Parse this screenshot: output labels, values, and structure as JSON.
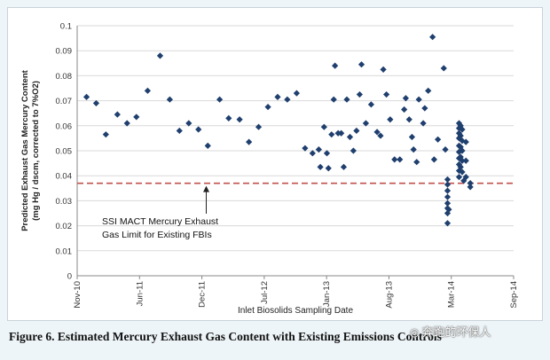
{
  "chart_data": {
    "type": "scatter",
    "ylabel": "Predicted Exhaust Gas Mercury Content (mg Hg / dscm, corrected to 7%O2)",
    "ylabel_lines": [
      "Predicted Exhaust Gas Mercury Content",
      "(mg Hg / dscm, corrected to 7%O2)"
    ],
    "xlabel": "Inlet Biosolids Sampling Date",
    "x_ticks": [
      "Nov-10",
      "Jun-11",
      "Dec-11",
      "Jul-12",
      "Jan-13",
      "Aug-13",
      "Mar-14",
      "Sep-14"
    ],
    "y_ticks": [
      "0",
      "0.01",
      "0.02",
      "0.03",
      "0.04",
      "0.05",
      "0.06",
      "0.07",
      "0.08",
      "0.09",
      "0.1"
    ],
    "ylim": [
      0,
      0.1
    ],
    "xlim": [
      "2010-11-01",
      "2014-09-01"
    ],
    "grid": "horizontal",
    "marker_color": "#1f3f6e",
    "limit_line": {
      "value": 0.037,
      "color": "#c0504d",
      "style": "dashed"
    },
    "annotation": {
      "lines": [
        "SSI MACT Mercury Exhaust",
        "Gas Limit for Existing FBIs"
      ],
      "points_to": {
        "x": "2011-12-20",
        "y": 0.037
      }
    },
    "points": [
      {
        "x": "2010-12-01",
        "y": 0.0715
      },
      {
        "x": "2011-01-01",
        "y": 0.069
      },
      {
        "x": "2011-02-01",
        "y": 0.0565
      },
      {
        "x": "2011-03-10",
        "y": 0.0645
      },
      {
        "x": "2011-04-10",
        "y": 0.061
      },
      {
        "x": "2011-05-10",
        "y": 0.0635
      },
      {
        "x": "2011-06-15",
        "y": 0.074
      },
      {
        "x": "2011-07-25",
        "y": 0.088
      },
      {
        "x": "2011-08-25",
        "y": 0.0705
      },
      {
        "x": "2011-09-25",
        "y": 0.058
      },
      {
        "x": "2011-10-25",
        "y": 0.061
      },
      {
        "x": "2011-11-25",
        "y": 0.0585
      },
      {
        "x": "2011-12-25",
        "y": 0.052
      },
      {
        "x": "2012-02-01",
        "y": 0.0705
      },
      {
        "x": "2012-03-01",
        "y": 0.063
      },
      {
        "x": "2012-04-05",
        "y": 0.0625
      },
      {
        "x": "2012-05-05",
        "y": 0.0535
      },
      {
        "x": "2012-06-05",
        "y": 0.0595
      },
      {
        "x": "2012-07-05",
        "y": 0.0675
      },
      {
        "x": "2012-08-05",
        "y": 0.0715
      },
      {
        "x": "2012-09-05",
        "y": 0.0705
      },
      {
        "x": "2012-10-05",
        "y": 0.073
      },
      {
        "x": "2012-11-01",
        "y": 0.051
      },
      {
        "x": "2012-11-25",
        "y": 0.049
      },
      {
        "x": "2012-12-15",
        "y": 0.0505
      },
      {
        "x": "2012-12-20",
        "y": 0.0435
      },
      {
        "x": "2013-01-01",
        "y": 0.0595
      },
      {
        "x": "2013-01-10",
        "y": 0.049
      },
      {
        "x": "2013-01-15",
        "y": 0.043
      },
      {
        "x": "2013-01-25",
        "y": 0.0565
      },
      {
        "x": "2013-02-01",
        "y": 0.0705
      },
      {
        "x": "2013-02-05",
        "y": 0.084
      },
      {
        "x": "2013-02-15",
        "y": 0.057
      },
      {
        "x": "2013-02-25",
        "y": 0.057
      },
      {
        "x": "2013-03-05",
        "y": 0.0435
      },
      {
        "x": "2013-03-15",
        "y": 0.0705
      },
      {
        "x": "2013-03-25",
        "y": 0.0555
      },
      {
        "x": "2013-04-05",
        "y": 0.05
      },
      {
        "x": "2013-04-15",
        "y": 0.058
      },
      {
        "x": "2013-04-25",
        "y": 0.0725
      },
      {
        "x": "2013-05-01",
        "y": 0.0845
      },
      {
        "x": "2013-05-15",
        "y": 0.061
      },
      {
        "x": "2013-06-01",
        "y": 0.0685
      },
      {
        "x": "2013-06-20",
        "y": 0.0575
      },
      {
        "x": "2013-07-01",
        "y": 0.056
      },
      {
        "x": "2013-07-10",
        "y": 0.0825
      },
      {
        "x": "2013-07-20",
        "y": 0.0725
      },
      {
        "x": "2013-08-01",
        "y": 0.0625
      },
      {
        "x": "2013-08-15",
        "y": 0.0465
      },
      {
        "x": "2013-09-01",
        "y": 0.0465
      },
      {
        "x": "2013-09-15",
        "y": 0.0665
      },
      {
        "x": "2013-09-20",
        "y": 0.071
      },
      {
        "x": "2013-10-01",
        "y": 0.0625
      },
      {
        "x": "2013-10-10",
        "y": 0.0555
      },
      {
        "x": "2013-10-15",
        "y": 0.0505
      },
      {
        "x": "2013-10-25",
        "y": 0.0455
      },
      {
        "x": "2013-11-01",
        "y": 0.0705
      },
      {
        "x": "2013-11-15",
        "y": 0.061
      },
      {
        "x": "2013-11-20",
        "y": 0.067
      },
      {
        "x": "2013-12-01",
        "y": 0.074
      },
      {
        "x": "2013-12-15",
        "y": 0.0955
      },
      {
        "x": "2013-12-20",
        "y": 0.0465
      },
      {
        "x": "2014-01-01",
        "y": 0.0545
      },
      {
        "x": "2014-01-20",
        "y": 0.083
      },
      {
        "x": "2014-01-25",
        "y": 0.0505
      },
      {
        "x": "2014-02-01",
        "y": 0.0385
      },
      {
        "x": "2014-02-01",
        "y": 0.0365
      },
      {
        "x": "2014-02-01",
        "y": 0.034
      },
      {
        "x": "2014-02-01",
        "y": 0.0315
      },
      {
        "x": "2014-02-01",
        "y": 0.029
      },
      {
        "x": "2014-02-01",
        "y": 0.027
      },
      {
        "x": "2014-02-01",
        "y": 0.025
      },
      {
        "x": "2014-02-01",
        "y": 0.021
      },
      {
        "x": "2014-02-05",
        "y": 0.0265
      },
      {
        "x": "2014-03-10",
        "y": 0.061
      },
      {
        "x": "2014-03-10",
        "y": 0.059
      },
      {
        "x": "2014-03-10",
        "y": 0.057
      },
      {
        "x": "2014-03-10",
        "y": 0.055
      },
      {
        "x": "2014-03-10",
        "y": 0.052
      },
      {
        "x": "2014-03-10",
        "y": 0.0495
      },
      {
        "x": "2014-03-10",
        "y": 0.047
      },
      {
        "x": "2014-03-10",
        "y": 0.0445
      },
      {
        "x": "2014-03-10",
        "y": 0.042
      },
      {
        "x": "2014-03-10",
        "y": 0.0395
      },
      {
        "x": "2014-03-15",
        "y": 0.06
      },
      {
        "x": "2014-03-15",
        "y": 0.056
      },
      {
        "x": "2014-03-15",
        "y": 0.0515
      },
      {
        "x": "2014-03-15",
        "y": 0.0475
      },
      {
        "x": "2014-03-15",
        "y": 0.0435
      },
      {
        "x": "2014-03-20",
        "y": 0.0585
      },
      {
        "x": "2014-03-20",
        "y": 0.054
      },
      {
        "x": "2014-03-20",
        "y": 0.05
      },
      {
        "x": "2014-03-20",
        "y": 0.046
      },
      {
        "x": "2014-03-20",
        "y": 0.0415
      },
      {
        "x": "2014-03-25",
        "y": 0.038
      },
      {
        "x": "2014-04-01",
        "y": 0.0535
      },
      {
        "x": "2014-04-01",
        "y": 0.046
      },
      {
        "x": "2014-04-01",
        "y": 0.0395
      },
      {
        "x": "2014-04-15",
        "y": 0.037
      },
      {
        "x": "2014-04-15",
        "y": 0.0355
      }
    ]
  },
  "caption": "Figure 6. Estimated Mercury Exhaust Gas Content with Existing Emissions Controls",
  "watermark": {
    "icon": "wechat-icon",
    "text": "奔跑的环保人"
  }
}
